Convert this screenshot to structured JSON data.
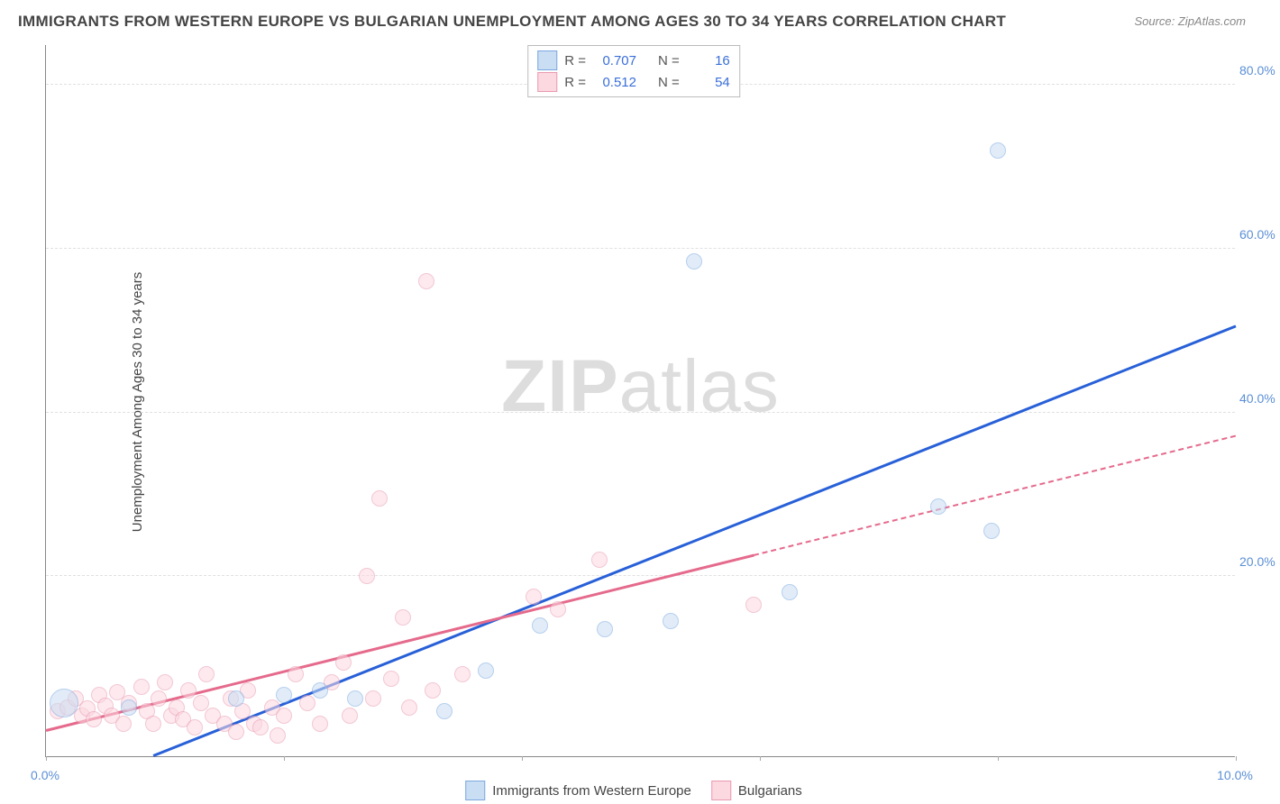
{
  "title": "IMMIGRANTS FROM WESTERN EUROPE VS BULGARIAN UNEMPLOYMENT AMONG AGES 30 TO 34 YEARS CORRELATION CHART",
  "source": "Source: ZipAtlas.com",
  "ylabel": "Unemployment Among Ages 30 to 34 years",
  "watermark": {
    "bold": "ZIP",
    "light": "atlas"
  },
  "chart": {
    "type": "scatter",
    "xlim": [
      0,
      10
    ],
    "ylim": [
      -2,
      85
    ],
    "xtick_labels": [
      "0.0%",
      "10.0%"
    ],
    "xtick_positions": [
      0,
      10
    ],
    "xtick_marks": [
      0,
      2,
      4,
      6,
      8,
      10
    ],
    "ytick_labels": [
      "20.0%",
      "40.0%",
      "60.0%",
      "80.0%"
    ],
    "ytick_positions": [
      20,
      40,
      60,
      80
    ],
    "background_color": "#ffffff",
    "grid_color": "#e0e0e0",
    "axis_color": "#888888",
    "tick_text_color": "#5b8fd6",
    "marker_radius": 9,
    "series": [
      {
        "id": "blue",
        "label": "Immigrants from Western Europe",
        "fill": "#c9ddf3",
        "stroke": "#7ba8e0",
        "fill_opacity": 0.55,
        "line_color": "#2860d8",
        "r_value": "0.707",
        "n_value": "16",
        "points": [
          {
            "x": 0.15,
            "y": 4.5,
            "r": 16
          },
          {
            "x": 0.7,
            "y": 4.0
          },
          {
            "x": 1.6,
            "y": 5.0
          },
          {
            "x": 2.0,
            "y": 5.5
          },
          {
            "x": 2.3,
            "y": 6.0
          },
          {
            "x": 2.6,
            "y": 5.0
          },
          {
            "x": 3.35,
            "y": 3.5
          },
          {
            "x": 3.7,
            "y": 8.5
          },
          {
            "x": 4.15,
            "y": 14.0
          },
          {
            "x": 4.7,
            "y": 13.5
          },
          {
            "x": 5.25,
            "y": 14.5
          },
          {
            "x": 5.45,
            "y": 58.5
          },
          {
            "x": 6.25,
            "y": 18.0
          },
          {
            "x": 7.5,
            "y": 28.5
          },
          {
            "x": 7.95,
            "y": 25.5
          },
          {
            "x": 8.0,
            "y": 72.0
          }
        ],
        "trend": {
          "x1": 0.9,
          "y1": -2,
          "x2": 10,
          "y2": 50.5,
          "dashed_from_x": null
        }
      },
      {
        "id": "pink",
        "label": "Bulgarians",
        "fill": "#fcd8e1",
        "stroke": "#e99ab0",
        "fill_opacity": 0.55,
        "line_color": "#e56a8c",
        "r_value": "0.512",
        "n_value": "54",
        "points": [
          {
            "x": 0.1,
            "y": 3.5
          },
          {
            "x": 0.18,
            "y": 4.0
          },
          {
            "x": 0.25,
            "y": 5.0
          },
          {
            "x": 0.3,
            "y": 3.0
          },
          {
            "x": 0.35,
            "y": 3.8
          },
          {
            "x": 0.4,
            "y": 2.5
          },
          {
            "x": 0.45,
            "y": 5.5
          },
          {
            "x": 0.5,
            "y": 4.2
          },
          {
            "x": 0.55,
            "y": 3.0
          },
          {
            "x": 0.6,
            "y": 5.8
          },
          {
            "x": 0.65,
            "y": 2.0
          },
          {
            "x": 0.7,
            "y": 4.5
          },
          {
            "x": 0.8,
            "y": 6.5
          },
          {
            "x": 0.85,
            "y": 3.5
          },
          {
            "x": 0.9,
            "y": 2.0
          },
          {
            "x": 0.95,
            "y": 5.0
          },
          {
            "x": 1.0,
            "y": 7.0
          },
          {
            "x": 1.05,
            "y": 3.0
          },
          {
            "x": 1.1,
            "y": 4.0
          },
          {
            "x": 1.15,
            "y": 2.5
          },
          {
            "x": 1.2,
            "y": 6.0
          },
          {
            "x": 1.25,
            "y": 1.5
          },
          {
            "x": 1.3,
            "y": 4.5
          },
          {
            "x": 1.35,
            "y": 8.0
          },
          {
            "x": 1.4,
            "y": 3.0
          },
          {
            "x": 1.5,
            "y": 2.0
          },
          {
            "x": 1.55,
            "y": 5.0
          },
          {
            "x": 1.6,
            "y": 1.0
          },
          {
            "x": 1.65,
            "y": 3.5
          },
          {
            "x": 1.7,
            "y": 6.0
          },
          {
            "x": 1.75,
            "y": 2.0
          },
          {
            "x": 1.8,
            "y": 1.5
          },
          {
            "x": 1.9,
            "y": 4.0
          },
          {
            "x": 1.95,
            "y": 0.5
          },
          {
            "x": 2.0,
            "y": 3.0
          },
          {
            "x": 2.1,
            "y": 8.0
          },
          {
            "x": 2.2,
            "y": 4.5
          },
          {
            "x": 2.3,
            "y": 2.0
          },
          {
            "x": 2.4,
            "y": 7.0
          },
          {
            "x": 2.5,
            "y": 9.5
          },
          {
            "x": 2.55,
            "y": 3.0
          },
          {
            "x": 2.7,
            "y": 20.0
          },
          {
            "x": 2.75,
            "y": 5.0
          },
          {
            "x": 2.8,
            "y": 29.5
          },
          {
            "x": 2.9,
            "y": 7.5
          },
          {
            "x": 3.0,
            "y": 15.0
          },
          {
            "x": 3.05,
            "y": 4.0
          },
          {
            "x": 3.2,
            "y": 56.0
          },
          {
            "x": 3.25,
            "y": 6.0
          },
          {
            "x": 3.5,
            "y": 8.0
          },
          {
            "x": 4.1,
            "y": 17.5
          },
          {
            "x": 4.3,
            "y": 16.0
          },
          {
            "x": 4.65,
            "y": 22.0
          },
          {
            "x": 5.95,
            "y": 16.5
          }
        ],
        "trend": {
          "x1": 0,
          "y1": 1.0,
          "x2": 10,
          "y2": 37.0,
          "dashed_from_x": 5.95
        }
      }
    ]
  },
  "legend_top": {
    "r_label": "R =",
    "n_label": "N ="
  }
}
